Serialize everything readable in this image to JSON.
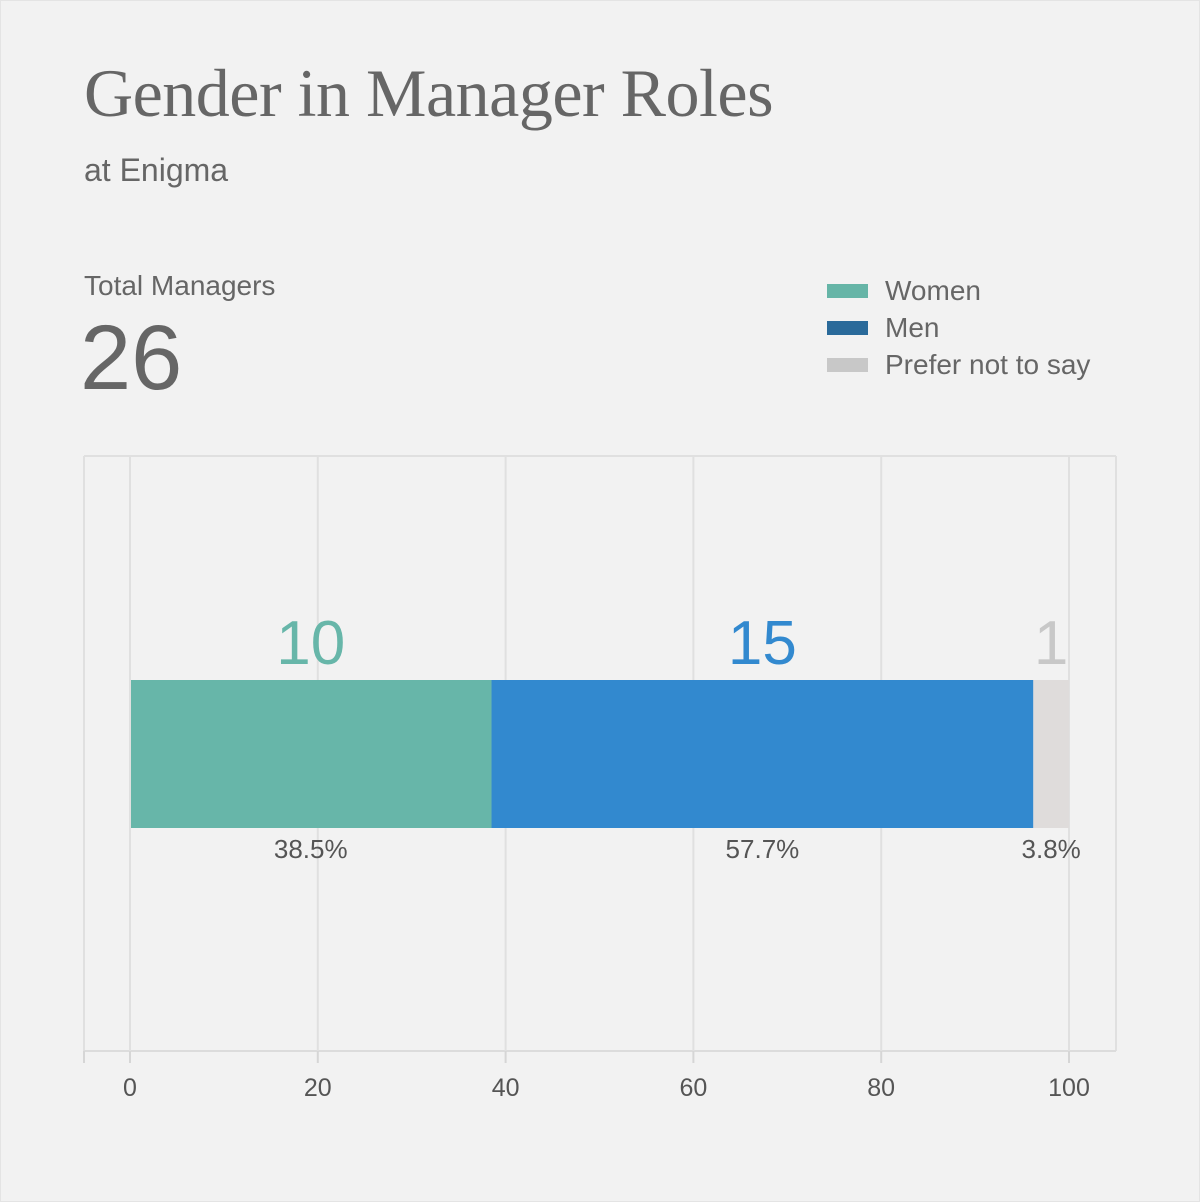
{
  "header": {
    "title": "Gender in Manager Roles",
    "subtitle": "at Enigma"
  },
  "summary": {
    "label": "Total Managers",
    "value": "26"
  },
  "legend": [
    {
      "label": "Women",
      "color": "#66b5a7"
    },
    {
      "label": "Men",
      "color": "#2a6a9a"
    },
    {
      "label": "Prefer not to say",
      "color": "#c8c8c8"
    }
  ],
  "chart_data": {
    "type": "bar",
    "orientation": "horizontal",
    "stacked": true,
    "xlim": [
      0,
      100
    ],
    "xticks": [
      0,
      20,
      40,
      60,
      80,
      100
    ],
    "grid": true,
    "series": [
      {
        "name": "Women",
        "count": "10",
        "value": 38.5,
        "percent_label": "38.5%",
        "color": "#67b6a9",
        "count_color": "#67b6a9"
      },
      {
        "name": "Men",
        "count": "15",
        "value": 57.7,
        "percent_label": "57.7%",
        "color": "#3289cf",
        "count_color": "#3289cf"
      },
      {
        "name": "Prefer not to say",
        "count": "1",
        "value": 3.8,
        "percent_label": "3.8%",
        "color": "#dfdcdb",
        "count_color": "#c8c8c8"
      }
    ]
  }
}
